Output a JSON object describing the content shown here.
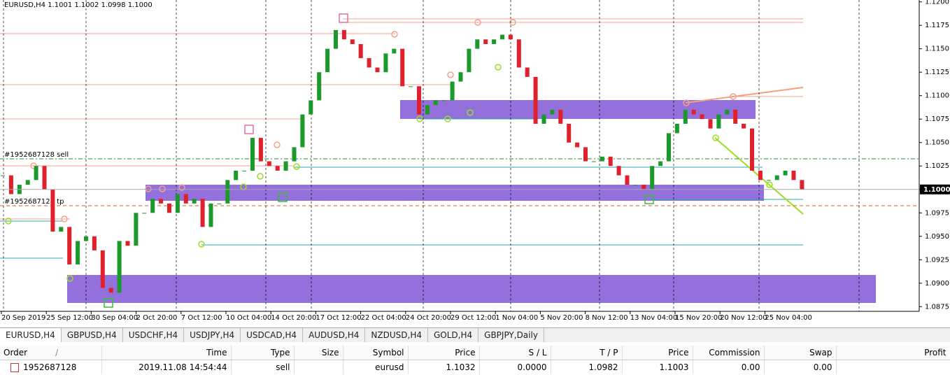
{
  "chart": {
    "header": "EURUSD,H4  1.1001 1.1002 1.0998 1.1000",
    "ylim": [
      1.087,
      1.1202
    ],
    "yticks": [
      {
        "value": 1.0875,
        "label": "1.0875"
      },
      {
        "value": 1.09,
        "label": "1.0900"
      },
      {
        "value": 1.0925,
        "label": "1.0925"
      },
      {
        "value": 1.095,
        "label": "1.0950"
      },
      {
        "value": 1.0975,
        "label": "1.0975"
      },
      {
        "value": 1.1,
        "label": "1.1000"
      },
      {
        "value": 1.1025,
        "label": "1.1025"
      },
      {
        "value": 1.105,
        "label": "1.1050"
      },
      {
        "value": 1.1075,
        "label": "1.1075"
      },
      {
        "value": 1.11,
        "label": "1.1100"
      },
      {
        "value": 1.1125,
        "label": "1.1125"
      },
      {
        "value": 1.115,
        "label": "1.1150"
      },
      {
        "value": 1.1175,
        "label": "1.1175"
      },
      {
        "value": 1.12,
        "label": "1.1200"
      }
    ],
    "x_labels": [
      "20 Sep 2019",
      "25 Sep 12:00",
      "30 Sep 04:00",
      "2 Oct 20:00",
      "7 Oct 12:00",
      "10 Oct 04:00",
      "14 Oct 20:00",
      "17 Oct 12:00",
      "22 Oct 04:00",
      "24 Oct 20:00",
      "29 Oct 12:00",
      "1 Nov 04:00",
      "5 Nov 20:00",
      "8 Nov 12:00",
      "13 Nov 04:00",
      "15 Nov 20:00",
      "20 Nov 12:00",
      "25 Nov 04:00"
    ],
    "closes": [
      1.1015,
      1.0995,
      1.1005,
      1.101,
      1.1025,
      1.1,
      1.0955,
      1.096,
      1.092,
      1.0945,
      1.095,
      1.0935,
      1.0895,
      1.089,
      1.0945,
      1.094,
      1.0975,
      1.0975,
      1.099,
      1.0985,
      1.0975,
      1.0995,
      1.0985,
      1.099,
      1.096,
      1.0985,
      1.0985,
      1.101,
      1.102,
      1.102,
      1.1055,
      1.103,
      1.1025,
      1.102,
      1.103,
      1.1045,
      1.108,
      1.1095,
      1.1125,
      1.115,
      1.117,
      1.116,
      1.1155,
      1.114,
      1.113,
      1.1125,
      1.1145,
      1.115,
      1.111,
      1.111,
      1.108,
      1.109,
      1.1095,
      1.1095,
      1.1115,
      1.1125,
      1.115,
      1.116,
      1.1155,
      1.116,
      1.1165,
      1.116,
      1.113,
      1.112,
      1.107,
      1.108,
      1.1085,
      1.107,
      1.105,
      1.1045,
      1.103,
      1.103,
      1.1035,
      1.1025,
      1.1015,
      1.1005,
      1.1005,
      1.1,
      1.1025,
      1.103,
      1.106,
      1.107,
      1.1085,
      1.108,
      1.1075,
      1.1065,
      1.108,
      1.1085,
      1.107,
      1.1065,
      1.102,
      1.101,
      1.101,
      1.1015,
      1.102,
      1.101,
      1.1
    ],
    "current_price": {
      "value": 1.1,
      "label": "1.1000"
    },
    "order_sell_label": "#1952687128 sell",
    "order_tp_label": "#1952687128 tp"
  },
  "tabs": [
    "EURUSD,H4",
    "GBPUSD,H4",
    "USDCHF,H4",
    "USDJPY,H4",
    "USDCAD,H4",
    "AUDUSD,H4",
    "NZDUSD,H4",
    "GOLD,H4",
    "GBPJPY,Daily"
  ],
  "table": {
    "sort_mark": "/",
    "columns": [
      "Order",
      "Time",
      "Type",
      "Size",
      "Symbol",
      "Price",
      "S / L",
      "T / P",
      "Price",
      "Commission",
      "Swap",
      "Profit"
    ],
    "rows": [
      [
        "1952687128",
        "2019.11.08 14:54:44",
        "sell",
        null,
        "eurusd",
        "1.1032",
        "0.0000",
        "1.0982",
        "1.1003",
        "0.00",
        "0.00",
        null
      ]
    ]
  }
}
